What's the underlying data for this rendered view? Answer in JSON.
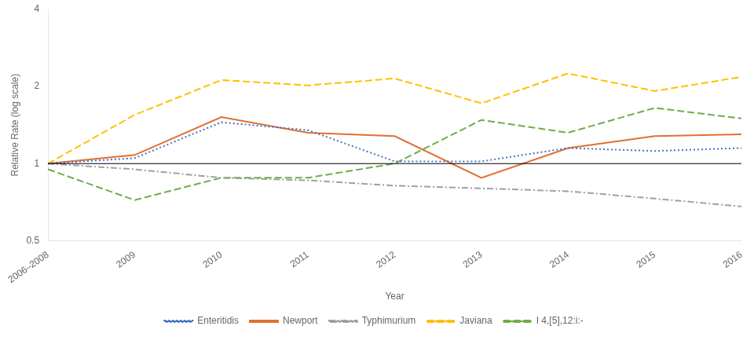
{
  "chart_data": {
    "type": "line",
    "categories": [
      "2006–2008",
      "2009",
      "2010",
      "2011",
      "2012",
      "2013",
      "2014",
      "2015",
      "2016"
    ],
    "series": [
      {
        "name": "Enteritidis",
        "color": "#4472C4",
        "line_style": "dotted",
        "values": [
          1.0,
          1.05,
          1.45,
          1.35,
          1.02,
          1.02,
          1.15,
          1.12,
          1.15
        ]
      },
      {
        "name": "Newport",
        "color": "#E07030",
        "line_style": "solid",
        "values": [
          1.0,
          1.08,
          1.52,
          1.32,
          1.28,
          0.88,
          1.15,
          1.28,
          1.3
        ]
      },
      {
        "name": "Typhimurium",
        "color": "#A0A0A0",
        "line_style": "dashdot",
        "values": [
          1.0,
          0.95,
          0.88,
          0.86,
          0.82,
          0.8,
          0.78,
          0.73,
          0.68
        ]
      },
      {
        "name": "Javiana",
        "color": "#FFC000",
        "line_style": "dashed",
        "values": [
          1.0,
          1.55,
          2.12,
          2.02,
          2.15,
          1.72,
          2.25,
          1.92,
          2.18
        ]
      },
      {
        "name": "I 4,[5],12:i:-",
        "color": "#70AD47",
        "line_style": "dashed",
        "values": [
          0.95,
          0.72,
          0.88,
          0.88,
          1.0,
          1.48,
          1.32,
          1.65,
          1.5
        ]
      }
    ],
    "xlabel": "Year",
    "ylabel": "Relative Rate (log scale)",
    "log": "y",
    "ylim": [
      0.5,
      4.0
    ],
    "yticks": [
      0.5,
      1,
      2,
      4
    ],
    "reference_line": 1.0,
    "grid": false,
    "legend": "bottom"
  }
}
